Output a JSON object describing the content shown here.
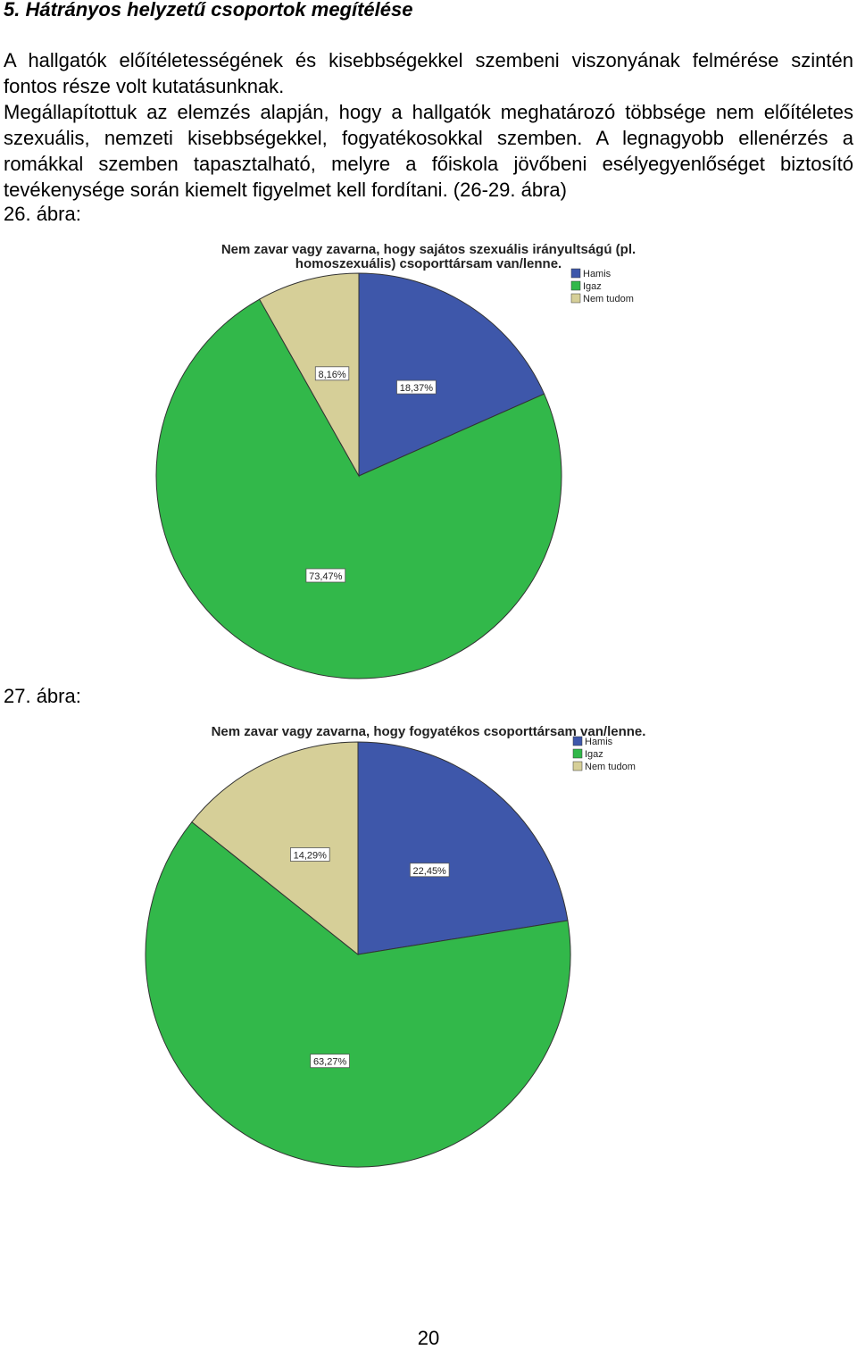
{
  "heading": "5. Hátrányos helyzetű csoportok megítélése",
  "paragraph1": "A hallgatók előítéletességének és kisebbségekkel szembeni viszonyának felmérése szintén fontos része volt kutatásunknak.",
  "paragraph2": "Megállapítottuk az elemzés alapján, hogy a hallgatók meghatározó többsége nem előítéletes szexuális, nemzeti kisebbségekkel, fogyatékosokkal szemben. A legnagyobb ellenérzés a romákkal szemben tapasztalható, melyre a főiskola jövőbeni esélyegyenlőséget biztosító tevékenysége során kiemelt figyelmet kell fordítani. (26-29. ábra)",
  "figure1_label": "26. ábra:",
  "figure2_label": "27. ábra:",
  "page_number": "20",
  "colors": {
    "hamis": "#3e57aa",
    "igaz": "#32b84a",
    "nem_tudom": "#d6cf98"
  },
  "chart_data": [
    {
      "type": "pie",
      "title_lines": [
        "Nem zavar vagy zavarna, hogy sajátos szexuális irányultságú (pl.",
        "homoszexuális) csoporttársam van/lenne."
      ],
      "legend": [
        "Hamis",
        "Igaz",
        "Nem tudom"
      ],
      "legend_placement": "top-right",
      "slices": [
        {
          "label": "Hamis",
          "value": 18.37,
          "text": "18,37%"
        },
        {
          "label": "Igaz",
          "value": 73.47,
          "text": "73,47%"
        },
        {
          "label": "Nem tudom",
          "value": 8.16,
          "text": "8,16%"
        }
      ]
    },
    {
      "type": "pie",
      "title_lines": [
        "Nem zavar vagy zavarna, hogy fogyatékos csoporttársam van/lenne."
      ],
      "legend": [
        "Hamis",
        "Igaz",
        "Nem tudom"
      ],
      "legend_placement": "top-right",
      "slices": [
        {
          "label": "Hamis",
          "value": 22.45,
          "text": "22,45%"
        },
        {
          "label": "Igaz",
          "value": 63.27,
          "text": "63,27%"
        },
        {
          "label": "Nem tudom",
          "value": 14.29,
          "text": "14,29%"
        }
      ]
    }
  ]
}
